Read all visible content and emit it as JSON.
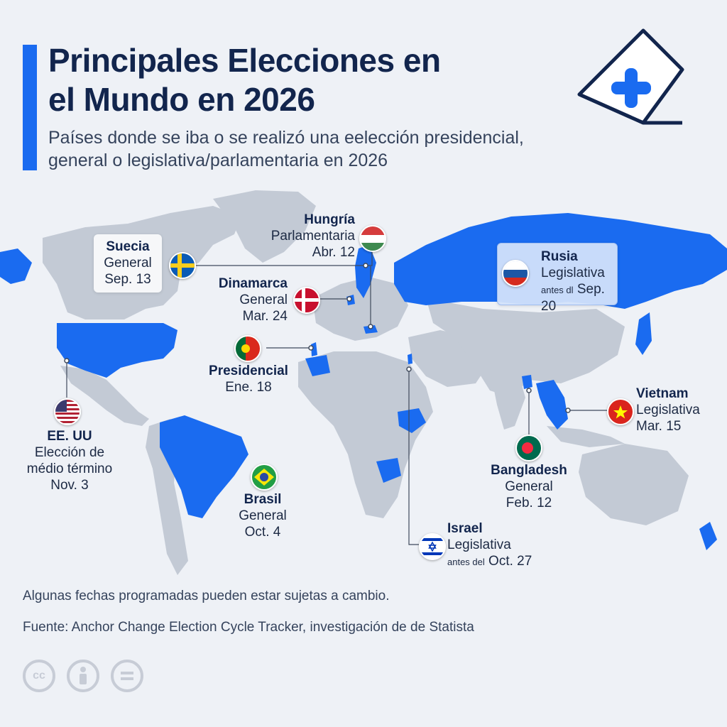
{
  "header": {
    "title_line1": "Principales Elecciones en",
    "title_line2": "el Mundo en 2026",
    "subtitle_line1": "Países donde se iba o se realizó una eelección presidencial,",
    "subtitle_line2": "general o legislativa/parlamentaria en 2026"
  },
  "colors": {
    "accent": "#1a6bf0",
    "election_country": "#1a6bf0",
    "other_country": "#c3cad5",
    "background": "#eef1f6",
    "title": "#12254d"
  },
  "elections": [
    {
      "id": "suecia",
      "name": "Suecia",
      "kind": "General",
      "date": "Sep. 13",
      "flag": "sweden-flag-icon"
    },
    {
      "id": "hungria",
      "name": "Hungría",
      "kind": "Parlamentaria",
      "date": "Abr. 12",
      "flag": "hungary-flag-icon"
    },
    {
      "id": "dinamarca",
      "name": "Dinamarca",
      "kind": "General",
      "date": "Mar. 24",
      "flag": "denmark-flag-icon"
    },
    {
      "id": "portugal",
      "name": "Presidencial",
      "kind": "",
      "date": "Ene. 18",
      "flag": "portugal-flag-icon"
    },
    {
      "id": "rusia",
      "name": "Rusia",
      "kind": "Legislativa",
      "date_prefix": "antes dl",
      "date": "Sep. 20",
      "flag": "russia-flag-icon"
    },
    {
      "id": "eeuu",
      "name": "EE. UU",
      "kind_line1": "Elección de",
      "kind_line2": "médio término",
      "date": "Nov. 3",
      "flag": "usa-flag-icon"
    },
    {
      "id": "brasil",
      "name": "Brasil",
      "kind": "General",
      "date": "Oct. 4",
      "flag": "brazil-flag-icon"
    },
    {
      "id": "vietnam",
      "name": "Vietnam",
      "kind": "Legislativa",
      "date": "Mar. 15",
      "flag": "vietnam-flag-icon"
    },
    {
      "id": "bangladesh",
      "name": "Bangladesh",
      "kind": "General",
      "date": "Feb. 12",
      "flag": "bangladesh-flag-icon"
    },
    {
      "id": "israel",
      "name": "Israel",
      "kind": "Legislativa",
      "date_prefix": "antes del",
      "date": "Oct. 27",
      "flag": "israel-flag-icon"
    }
  ],
  "footer": {
    "note": "Algunas fechas programadas pueden estar sujetas a cambio.",
    "source": "Fuente: Anchor Change Election Cycle Tracker, investigación de de Statista",
    "license_icons": [
      "cc-icon",
      "by-icon",
      "nd-icon"
    ]
  }
}
